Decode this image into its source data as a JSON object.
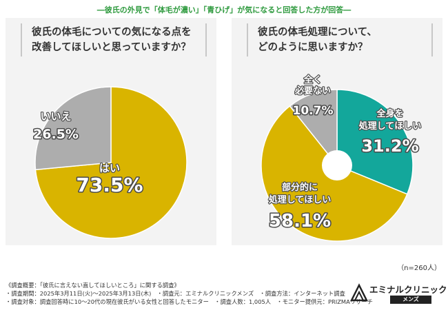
{
  "header": "―彼氏の外見で「体毛が濃い」「青ひげ」が気になると回答した方が回答―",
  "colors": {
    "gold": "#d9b400",
    "gray": "#adadad",
    "teal": "#13a79b",
    "panel": "#f3f3f3",
    "header_green": "#2e9a3e"
  },
  "chart_data": [
    {
      "type": "pie",
      "title_lines": [
        "彼氏の体毛についての気になる点を",
        "改善してほしいと思っていますか？"
      ],
      "slices": [
        {
          "label": "はい",
          "value": 73.5,
          "value_text": "73.5%",
          "color": "#d9b400"
        },
        {
          "label": "いいえ",
          "value": 26.5,
          "value_text": "26.5%",
          "color": "#adadad"
        }
      ]
    },
    {
      "type": "pie",
      "donut": true,
      "title_lines": [
        "彼氏の体毛処理について、",
        "どのように思いますか？"
      ],
      "slices": [
        {
          "label_lines": [
            "全身を",
            "処理してほしい"
          ],
          "value": 31.2,
          "value_text": "31.2%",
          "color": "#13a79b"
        },
        {
          "label_lines": [
            "部分的に",
            "処理してほしい"
          ],
          "value": 58.1,
          "value_text": "58.1%",
          "color": "#d9b400"
        },
        {
          "label_lines": [
            "全く",
            "必要ない"
          ],
          "value": 10.7,
          "value_text": "10.7%",
          "color": "#adadad"
        }
      ]
    }
  ],
  "sample_size": "（n=260人）",
  "notes": [
    "《調査概要：「彼氏に言えない直してほしいところ」に関する調査》",
    "・調査期間：2025年3月11日(火)～2025年3月13日(木)　・調査元：エミナルクリニックメンズ　・調査方法：インターネット調査",
    "・調査対象：調査回答時に10～20代の現在彼氏がいる女性と回答したモニター　・調査人数：1,005人　・モニター提供元：PRIZMAリサーチ"
  ],
  "logo": {
    "name": "エミナルクリニック",
    "sub": "メンズ"
  }
}
